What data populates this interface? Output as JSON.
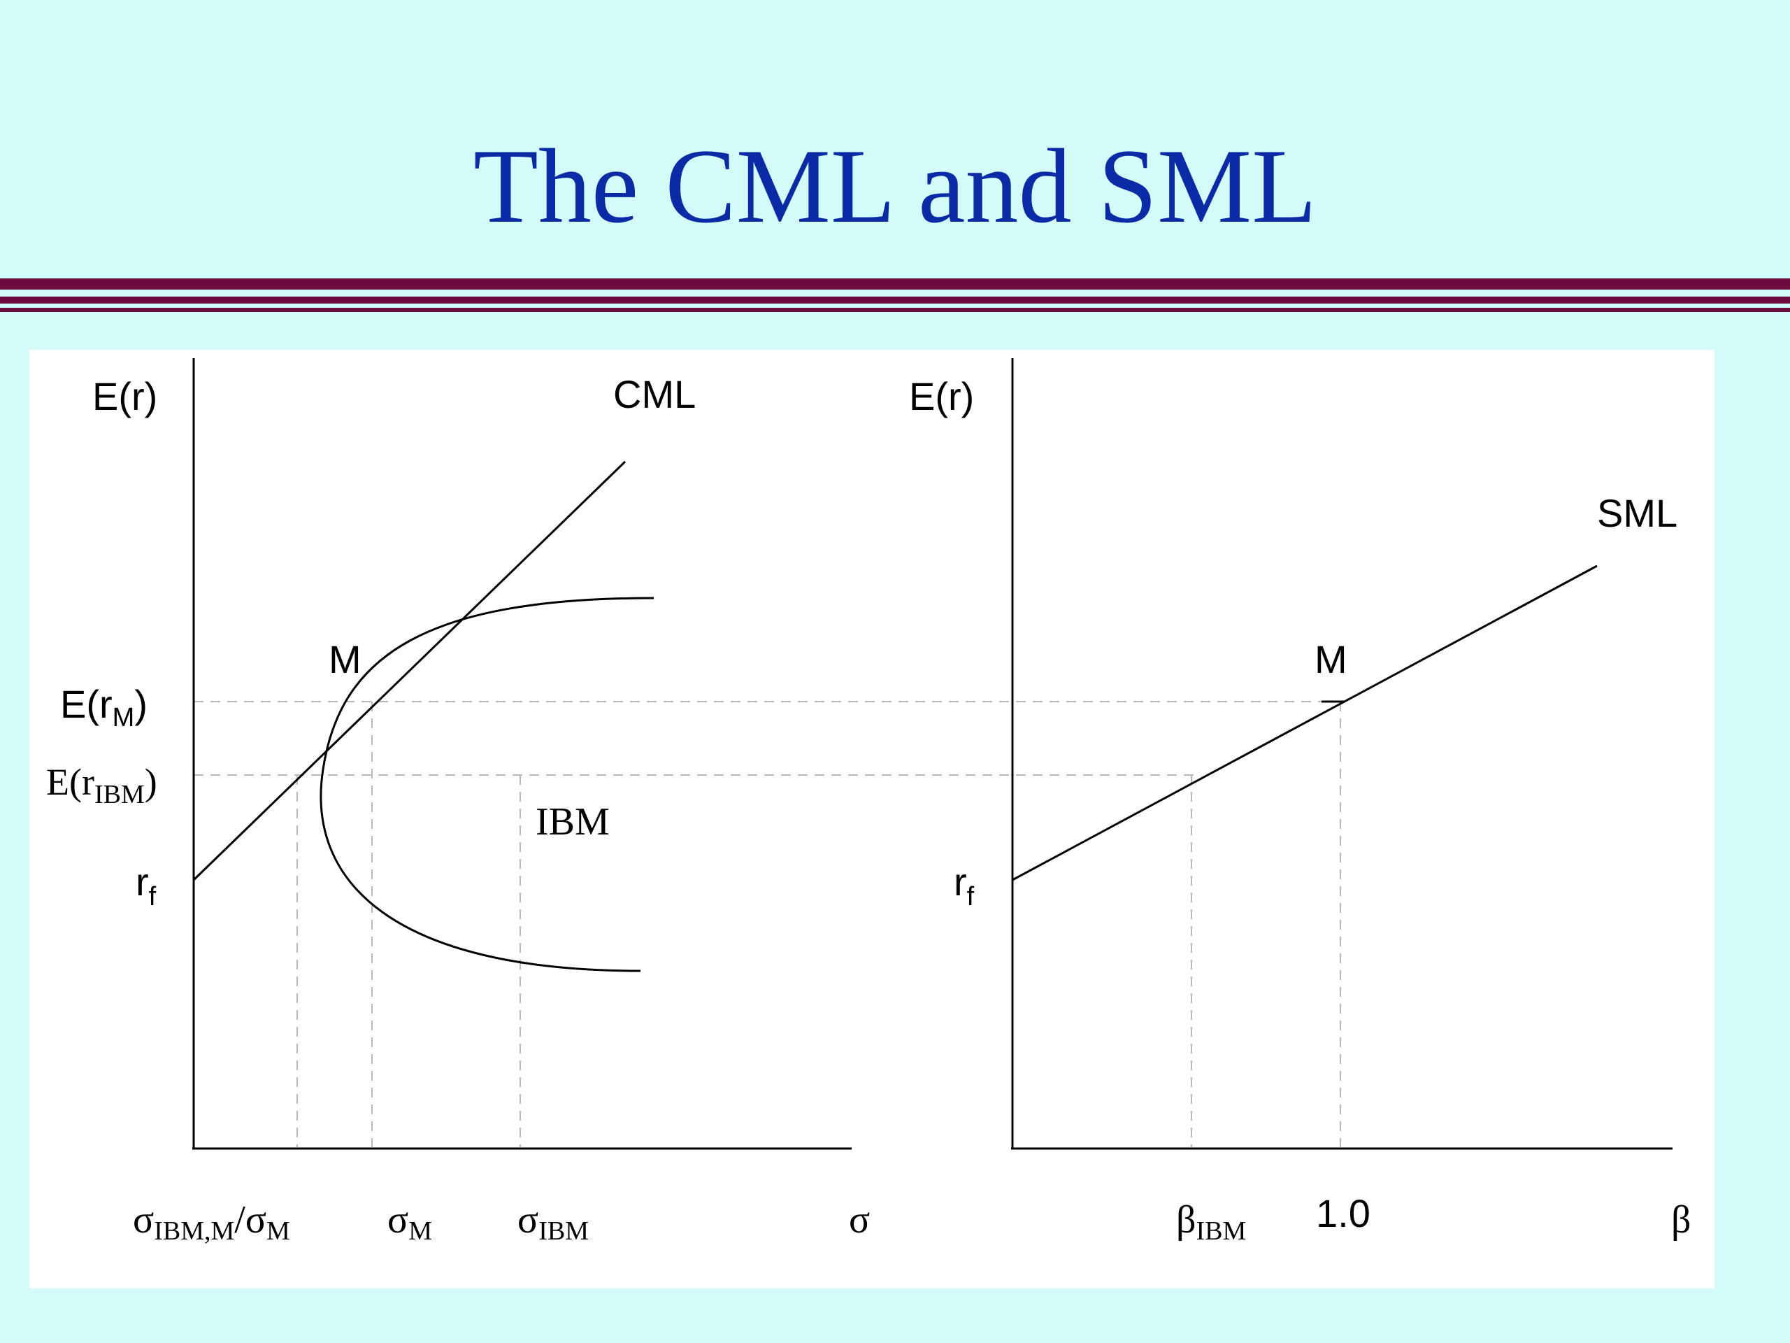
{
  "slide": {
    "title": "The CML and SML"
  },
  "colors": {
    "background": "#d2fbfa",
    "title": "#0a2aa6",
    "rule": "#6b0b3e",
    "panel": "#ffffff",
    "line": "#000000",
    "guide": "#b8b8b8"
  },
  "left_panel": {
    "y_axis_label": "E(r)",
    "line_label": "CML",
    "market_point_label": "M",
    "y_tick_market": {
      "base": "E(r",
      "sub": "M",
      "close": ")"
    },
    "y_tick_ibm": {
      "base": "E(r",
      "sub": "IBM",
      "close": ")"
    },
    "y_tick_rf": {
      "base": "r",
      "sub": "f"
    },
    "ibm_label": "IBM",
    "x_tick_cov": {
      "sym": "σ",
      "sub": "IBM,M",
      "mid": "/σ",
      "sub2": "M"
    },
    "x_tick_sigma_m": {
      "sym": "σ",
      "sub": "M"
    },
    "x_tick_sigma_ibm": {
      "sym": "σ",
      "sub": "IBM"
    },
    "x_axis_label": "σ"
  },
  "right_panel": {
    "y_axis_label": "E(r)",
    "line_label": "SML",
    "market_point_label": "M",
    "y_tick_rf": {
      "base": "r",
      "sub": "f"
    },
    "x_tick_beta_ibm": {
      "sym": "β",
      "sub": "IBM"
    },
    "x_tick_one": "1.0",
    "x_axis_label": "β"
  }
}
